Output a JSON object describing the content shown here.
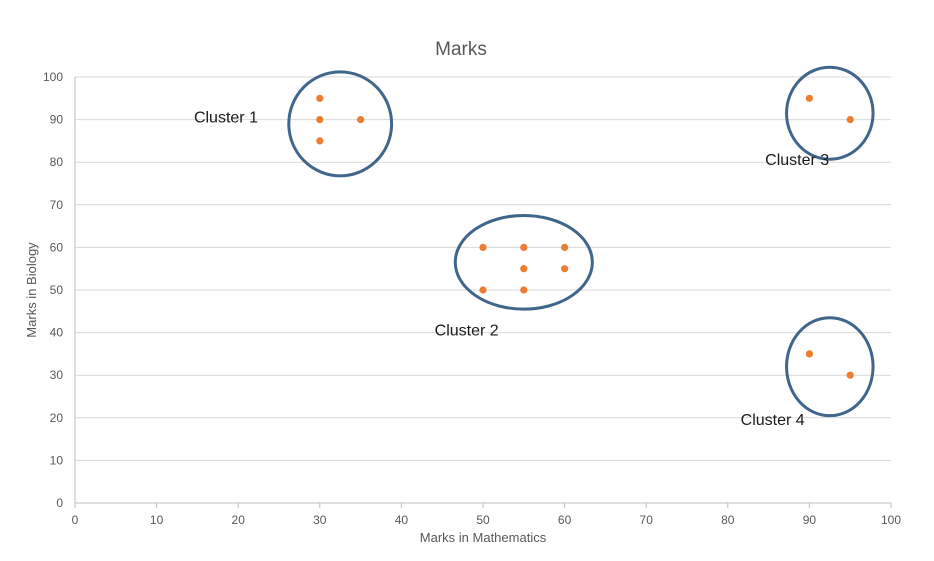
{
  "chart_data": {
    "type": "scatter",
    "title": "Marks",
    "xlabel": "Marks in Mathematics",
    "ylabel": "Marks in Biology",
    "xlim": [
      0,
      100
    ],
    "ylim": [
      0,
      100
    ],
    "x_ticks": [
      0,
      10,
      20,
      30,
      40,
      50,
      60,
      70,
      80,
      90,
      100
    ],
    "y_ticks": [
      0,
      10,
      20,
      30,
      40,
      50,
      60,
      70,
      80,
      90,
      100
    ],
    "grid": "horizontal",
    "points": [
      {
        "x": 30,
        "y": 95
      },
      {
        "x": 30,
        "y": 90
      },
      {
        "x": 35,
        "y": 90
      },
      {
        "x": 30,
        "y": 85
      },
      {
        "x": 90,
        "y": 95
      },
      {
        "x": 95,
        "y": 90
      },
      {
        "x": 50,
        "y": 60
      },
      {
        "x": 55,
        "y": 60
      },
      {
        "x": 60,
        "y": 60
      },
      {
        "x": 55,
        "y": 55
      },
      {
        "x": 60,
        "y": 55
      },
      {
        "x": 50,
        "y": 50
      },
      {
        "x": 55,
        "y": 50
      },
      {
        "x": 90,
        "y": 35
      },
      {
        "x": 95,
        "y": 30
      }
    ],
    "point_color": "#ED7D31",
    "clusters": [
      {
        "label": "Cluster 1",
        "center": [
          32.5,
          89
        ],
        "radius": [
          6.3,
          12.2
        ],
        "label_at": [
          18.5,
          90.5
        ],
        "label_anchor": "middle"
      },
      {
        "label": "Cluster 2",
        "center": [
          55,
          56.5
        ],
        "radius": [
          8.4,
          11
        ],
        "label_at": [
          48,
          40.5
        ],
        "label_anchor": "middle"
      },
      {
        "label": "Cluster 3",
        "center": [
          92.5,
          91.5
        ],
        "radius": [
          5.3,
          10.8
        ],
        "label_at": [
          88.5,
          80.5
        ],
        "label_anchor": "middle"
      },
      {
        "label": "Cluster 4",
        "center": [
          92.5,
          32
        ],
        "radius": [
          5.3,
          11.5
        ],
        "label_at": [
          85.5,
          19.5
        ],
        "label_anchor": "middle"
      }
    ],
    "cluster_color": "#41668C"
  }
}
